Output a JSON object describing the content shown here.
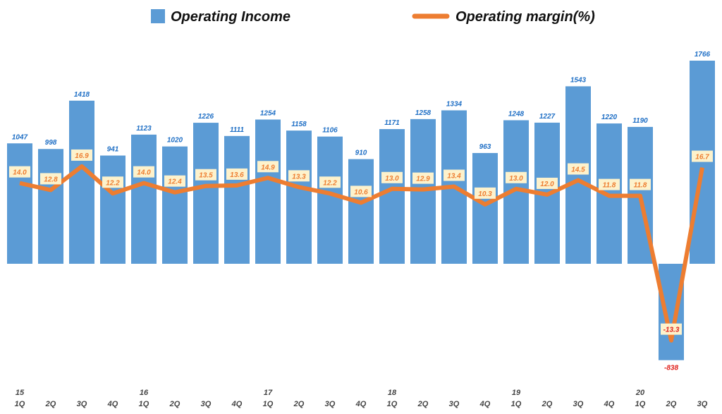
{
  "chart_data": {
    "type": "bar+line",
    "categories": [
      "1Q",
      "2Q",
      "3Q",
      "4Q",
      "1Q",
      "2Q",
      "3Q",
      "4Q",
      "1Q",
      "2Q",
      "3Q",
      "4Q",
      "1Q",
      "2Q",
      "3Q",
      "4Q",
      "1Q",
      "2Q",
      "3Q",
      "4Q",
      "1Q",
      "2Q",
      "3Q"
    ],
    "year_labels": [
      "15",
      "",
      "",
      "",
      "16",
      "",
      "",
      "",
      "17",
      "",
      "",
      "",
      "18",
      "",
      "",
      "",
      "19",
      "",
      "",
      "",
      "20",
      "",
      ""
    ],
    "series": [
      {
        "name": "Operating Income",
        "type": "bar",
        "color": "#5b9bd5",
        "values": [
          1047,
          998,
          1418,
          941,
          1123,
          1020,
          1226,
          1111,
          1254,
          1158,
          1106,
          910,
          1171,
          1258,
          1334,
          963,
          1248,
          1227,
          1543,
          1220,
          1190,
          -838,
          1766
        ]
      },
      {
        "name": "Operating margin(%)",
        "type": "line",
        "color": "#ed7d31",
        "values": [
          14.0,
          12.8,
          16.9,
          12.2,
          14.0,
          12.4,
          13.5,
          13.6,
          14.9,
          13.3,
          12.2,
          10.6,
          13.0,
          12.9,
          13.4,
          10.3,
          13.0,
          12.0,
          14.5,
          11.8,
          11.8,
          -13.3,
          16.7
        ]
      }
    ],
    "legend_position": "top",
    "grid": false,
    "label_box_color": "#fdf2cc",
    "negative_label_color": "#e0201b"
  }
}
